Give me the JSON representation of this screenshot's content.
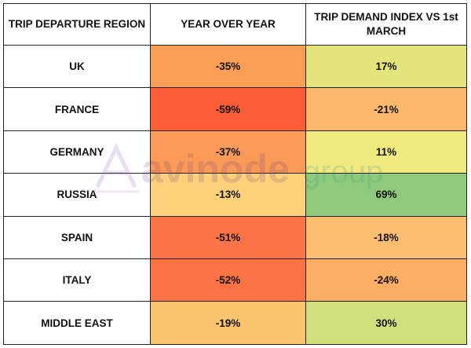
{
  "table": {
    "headers": {
      "region": "TRIP DEPARTURE REGION",
      "yoy": "YEAR OVER YEAR",
      "index": "TRIP DEMAND INDEX VS 1st MARCH"
    },
    "rows": [
      {
        "region": "UK",
        "yoy": "-35%",
        "yoy_color": "#fb9f57",
        "index": "17%",
        "index_color": "#e4e47c"
      },
      {
        "region": "FRANCE",
        "yoy": "-59%",
        "yoy_color": "#fa5c35",
        "index": "-21%",
        "index_color": "#fcb86b"
      },
      {
        "region": "GERMANY",
        "yoy": "-37%",
        "yoy_color": "#fb9a57",
        "index": "11%",
        "index_color": "#f1e87f"
      },
      {
        "region": "RUSSIA",
        "yoy": "-13%",
        "yoy_color": "#fdd07a",
        "index": "69%",
        "index_color": "#8ec97c"
      },
      {
        "region": "SPAIN",
        "yoy": "-51%",
        "yoy_color": "#fb7445",
        "index": "-18%",
        "index_color": "#fdbe70"
      },
      {
        "region": "ITALY",
        "yoy": "-52%",
        "yoy_color": "#fb7245",
        "index": "-24%",
        "index_color": "#fcae65"
      },
      {
        "region": "MIDDLE EAST",
        "yoy": "-19%",
        "yoy_color": "#fdc46f",
        "index": "30%",
        "index_color": "#d2df7c"
      }
    ]
  },
  "watermark": {
    "logo_text": "avinode",
    "group_text": "group"
  }
}
